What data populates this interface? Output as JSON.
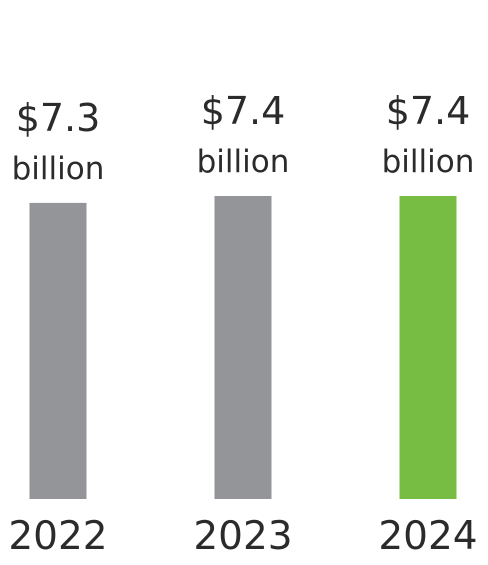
{
  "chart_data": {
    "type": "bar",
    "title": "",
    "xlabel": "",
    "ylabel": "",
    "categories": [
      "2022",
      "2023",
      "2024"
    ],
    "values": [
      7.3,
      7.4,
      7.4
    ],
    "value_labels": [
      "$7.3",
      "$7.4",
      "$7.4"
    ],
    "unit_labels": [
      "billion",
      "billion",
      "billion"
    ],
    "unit": "billion USD",
    "bar_colors": [
      "#939598",
      "#939598",
      "#77bc43"
    ],
    "grid": false,
    "legend": "none"
  }
}
